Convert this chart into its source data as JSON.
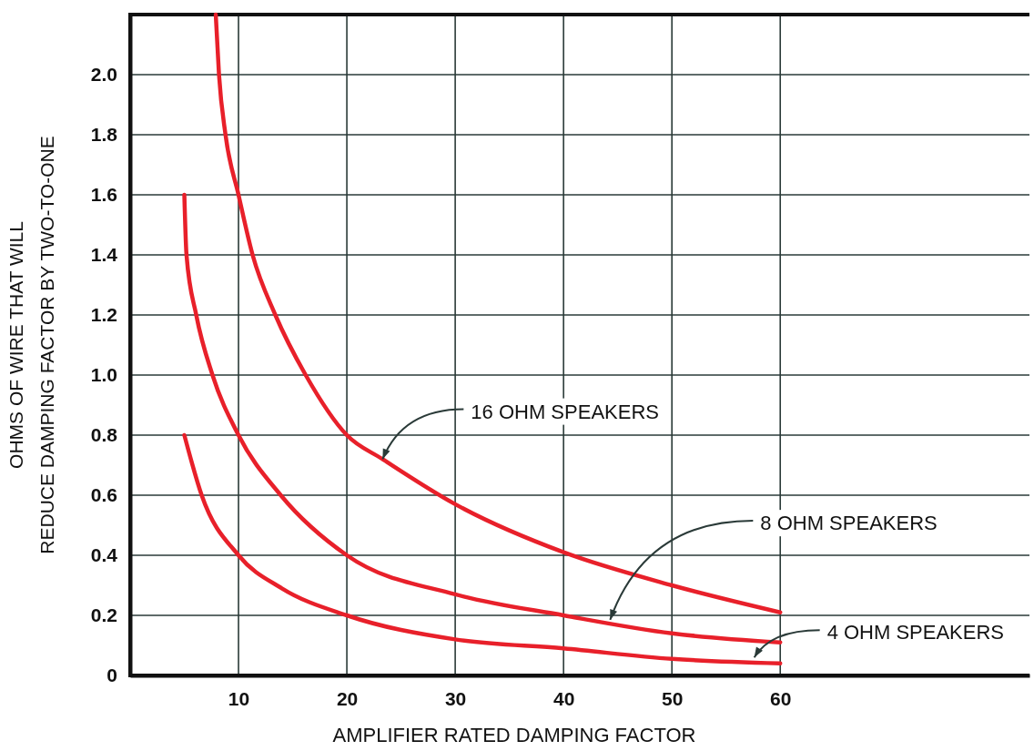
{
  "chart_data": {
    "type": "line",
    "xlabel": "AMPLIFIER RATED DAMPING FACTOR",
    "ylabel": "OHMS OF WIRE THAT WILL\nREDUCE DAMPING FACTOR BY TWO-TO-ONE",
    "xlim": [
      0,
      83
    ],
    "ylim": [
      0,
      2.2
    ],
    "xticks": [
      10,
      20,
      30,
      40,
      50,
      60
    ],
    "yticks": [
      {
        "value": 0,
        "label": "0"
      },
      0.2,
      0.4,
      0.6,
      0.8,
      {
        "value": 1,
        "label": "1.0"
      },
      1.2,
      1.4,
      1.6,
      1.8,
      {
        "value": 2,
        "label": "2.0"
      }
    ],
    "grid": true,
    "marker": "none",
    "line_style": "solid",
    "series": [
      {
        "color": "#e8202a",
        "x": [
          7.9,
          8.2,
          8.8,
          10,
          11.3,
          13.4,
          16.2,
          20,
          23.3,
          30,
          40,
          50,
          60
        ],
        "values": [
          2.2,
          2.0,
          1.8,
          1.6,
          1.4,
          1.2,
          1.0,
          0.8,
          0.72,
          0.57,
          0.41,
          0.3,
          0.21
        ]
      },
      {
        "color": "#e8202a",
        "x": [
          5,
          5.2,
          6.1,
          7.6,
          10,
          13.9,
          20,
          30,
          40,
          50,
          60
        ],
        "values": [
          1.6,
          1.4,
          1.2,
          1.0,
          0.8,
          0.6,
          0.4,
          0.27,
          0.2,
          0.14,
          0.11
        ]
      },
      {
        "color": "#e8202a",
        "x": [
          5,
          6.6,
          10,
          14,
          20,
          30,
          40,
          50,
          60
        ],
        "values": [
          0.8,
          0.6,
          0.4,
          0.29,
          0.2,
          0.12,
          0.09,
          0.055,
          0.04
        ]
      }
    ],
    "annotations": [
      {
        "text": "16 OHM SPEAKERS",
        "x": 23.3,
        "y": 0.72
      },
      {
        "text": "8 OHM SPEAKERS",
        "x": 44.3,
        "y": 0.185
      },
      {
        "text": "4 OHM SPEAKERS",
        "x": 57.6,
        "y": 0.06
      }
    ]
  }
}
